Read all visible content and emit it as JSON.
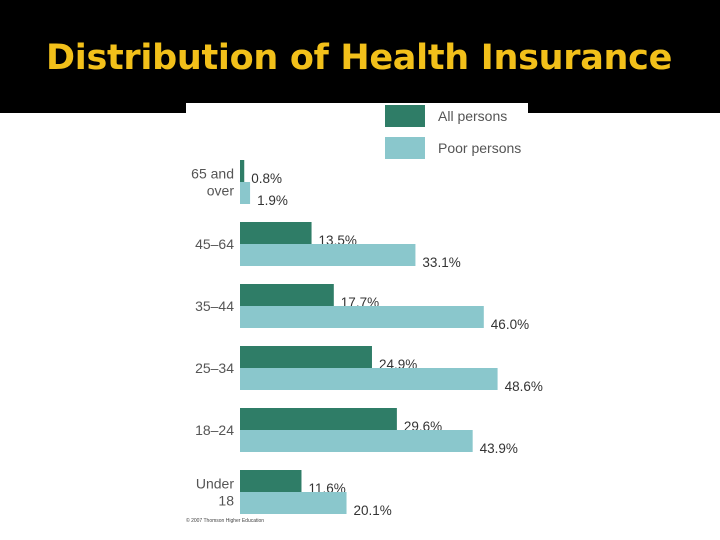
{
  "slide": {
    "title": "Distribution of Health Insurance",
    "title_color": "#f2c01a",
    "header_background": "#000000"
  },
  "chart_data": {
    "type": "bar",
    "orientation": "horizontal",
    "title": "",
    "xlabel": "",
    "ylabel": "",
    "xlim": [
      0,
      50
    ],
    "grid": false,
    "legend_position": "top-right",
    "categories": [
      "65 and over",
      "45–64",
      "35–44",
      "25–34",
      "18–24",
      "Under 18"
    ],
    "category_lines": [
      [
        "65 and",
        "over"
      ],
      [
        "45–64"
      ],
      [
        "35–44"
      ],
      [
        "25–34"
      ],
      [
        "18–24"
      ],
      [
        "Under",
        "18"
      ]
    ],
    "series": [
      {
        "name": "All persons",
        "color": "#2f7d67",
        "values": [
          0.8,
          13.5,
          17.7,
          24.9,
          29.6,
          11.6
        ],
        "labels": [
          "0.8%",
          "13.5%",
          "17.7%",
          "24.9%",
          "29.6%",
          "11.6%"
        ]
      },
      {
        "name": "Poor persons",
        "color": "#8ac7cc",
        "values": [
          1.9,
          33.1,
          46.0,
          48.6,
          43.9,
          20.1
        ],
        "labels": [
          "1.9%",
          "33.1%",
          "46.0%",
          "48.6%",
          "43.9%",
          "20.1%"
        ]
      }
    ],
    "credit": "© 2007 Thomson Higher Education"
  }
}
